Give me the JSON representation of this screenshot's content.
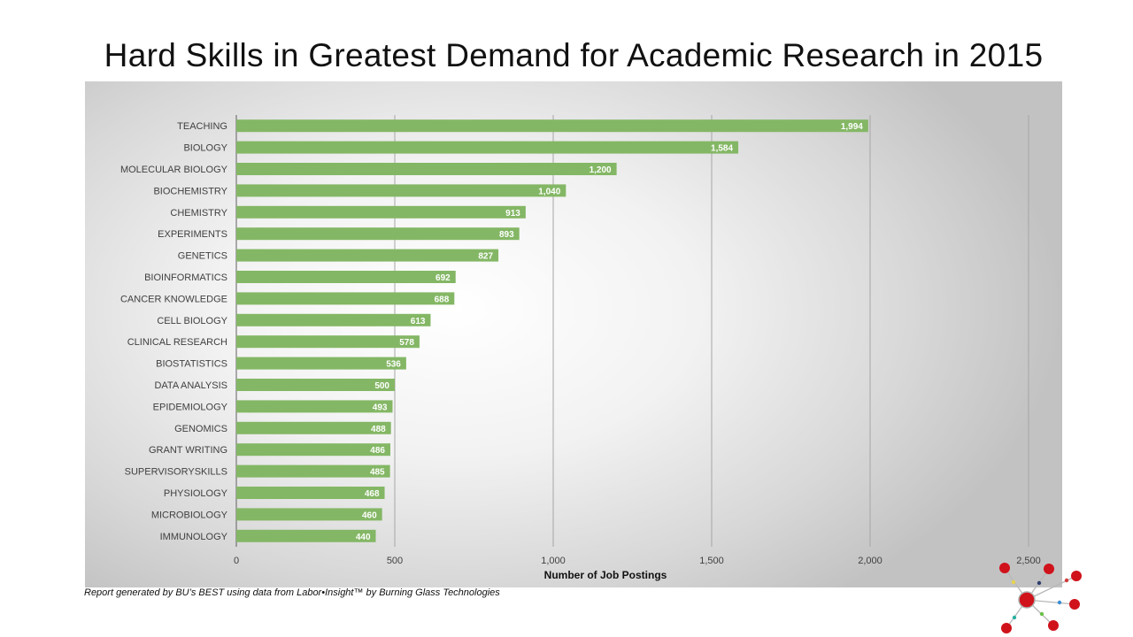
{
  "title": "Hard Skills in Greatest Demand for Academic Research in 2015",
  "footnote": "Report generated by BU’s BEST using data from Labor•Insight™ by Burning Glass Technologies",
  "colors": {
    "bar": "#84b765",
    "grid": "#a6a6a6",
    "label_text": "#404040",
    "bar_label": "#ffffff"
  },
  "chart_data": {
    "type": "bar",
    "orientation": "horizontal",
    "title": "Hard Skills in Greatest Demand for Academic Research in 2015",
    "xlabel": "Number of Job Postings",
    "ylabel": "",
    "xlim": [
      0,
      2500
    ],
    "xticks": [
      0,
      500,
      1000,
      1500,
      2000,
      2500
    ],
    "xtick_labels": [
      "0",
      "500",
      "1,000",
      "1,500",
      "2,000",
      "2,500"
    ],
    "grid": true,
    "categories": [
      "TEACHING",
      "BIOLOGY",
      "MOLECULAR BIOLOGY",
      "BIOCHEMISTRY",
      "CHEMISTRY",
      "EXPERIMENTS",
      "GENETICS",
      "BIOINFORMATICS",
      "CANCER KNOWLEDGE",
      "CELL BIOLOGY",
      "CLINICAL RESEARCH",
      "BIOSTATISTICS",
      "DATA ANALYSIS",
      "EPIDEMIOLOGY",
      "GENOMICS",
      "GRANT WRITING",
      "SUPERVISORYSKILLS",
      "PHYSIOLOGY",
      "MICROBIOLOGY",
      "IMMUNOLOGY"
    ],
    "values": [
      1994,
      1584,
      1200,
      1040,
      913,
      893,
      827,
      692,
      688,
      613,
      578,
      536,
      500,
      493,
      488,
      486,
      485,
      468,
      460,
      440
    ],
    "value_labels": [
      "1,994",
      "1,584",
      "1,200",
      "1,040",
      "913",
      "893",
      "827",
      "692",
      "688",
      "613",
      "578",
      "536",
      "500",
      "493",
      "488",
      "486",
      "485",
      "468",
      "460",
      "440"
    ]
  }
}
